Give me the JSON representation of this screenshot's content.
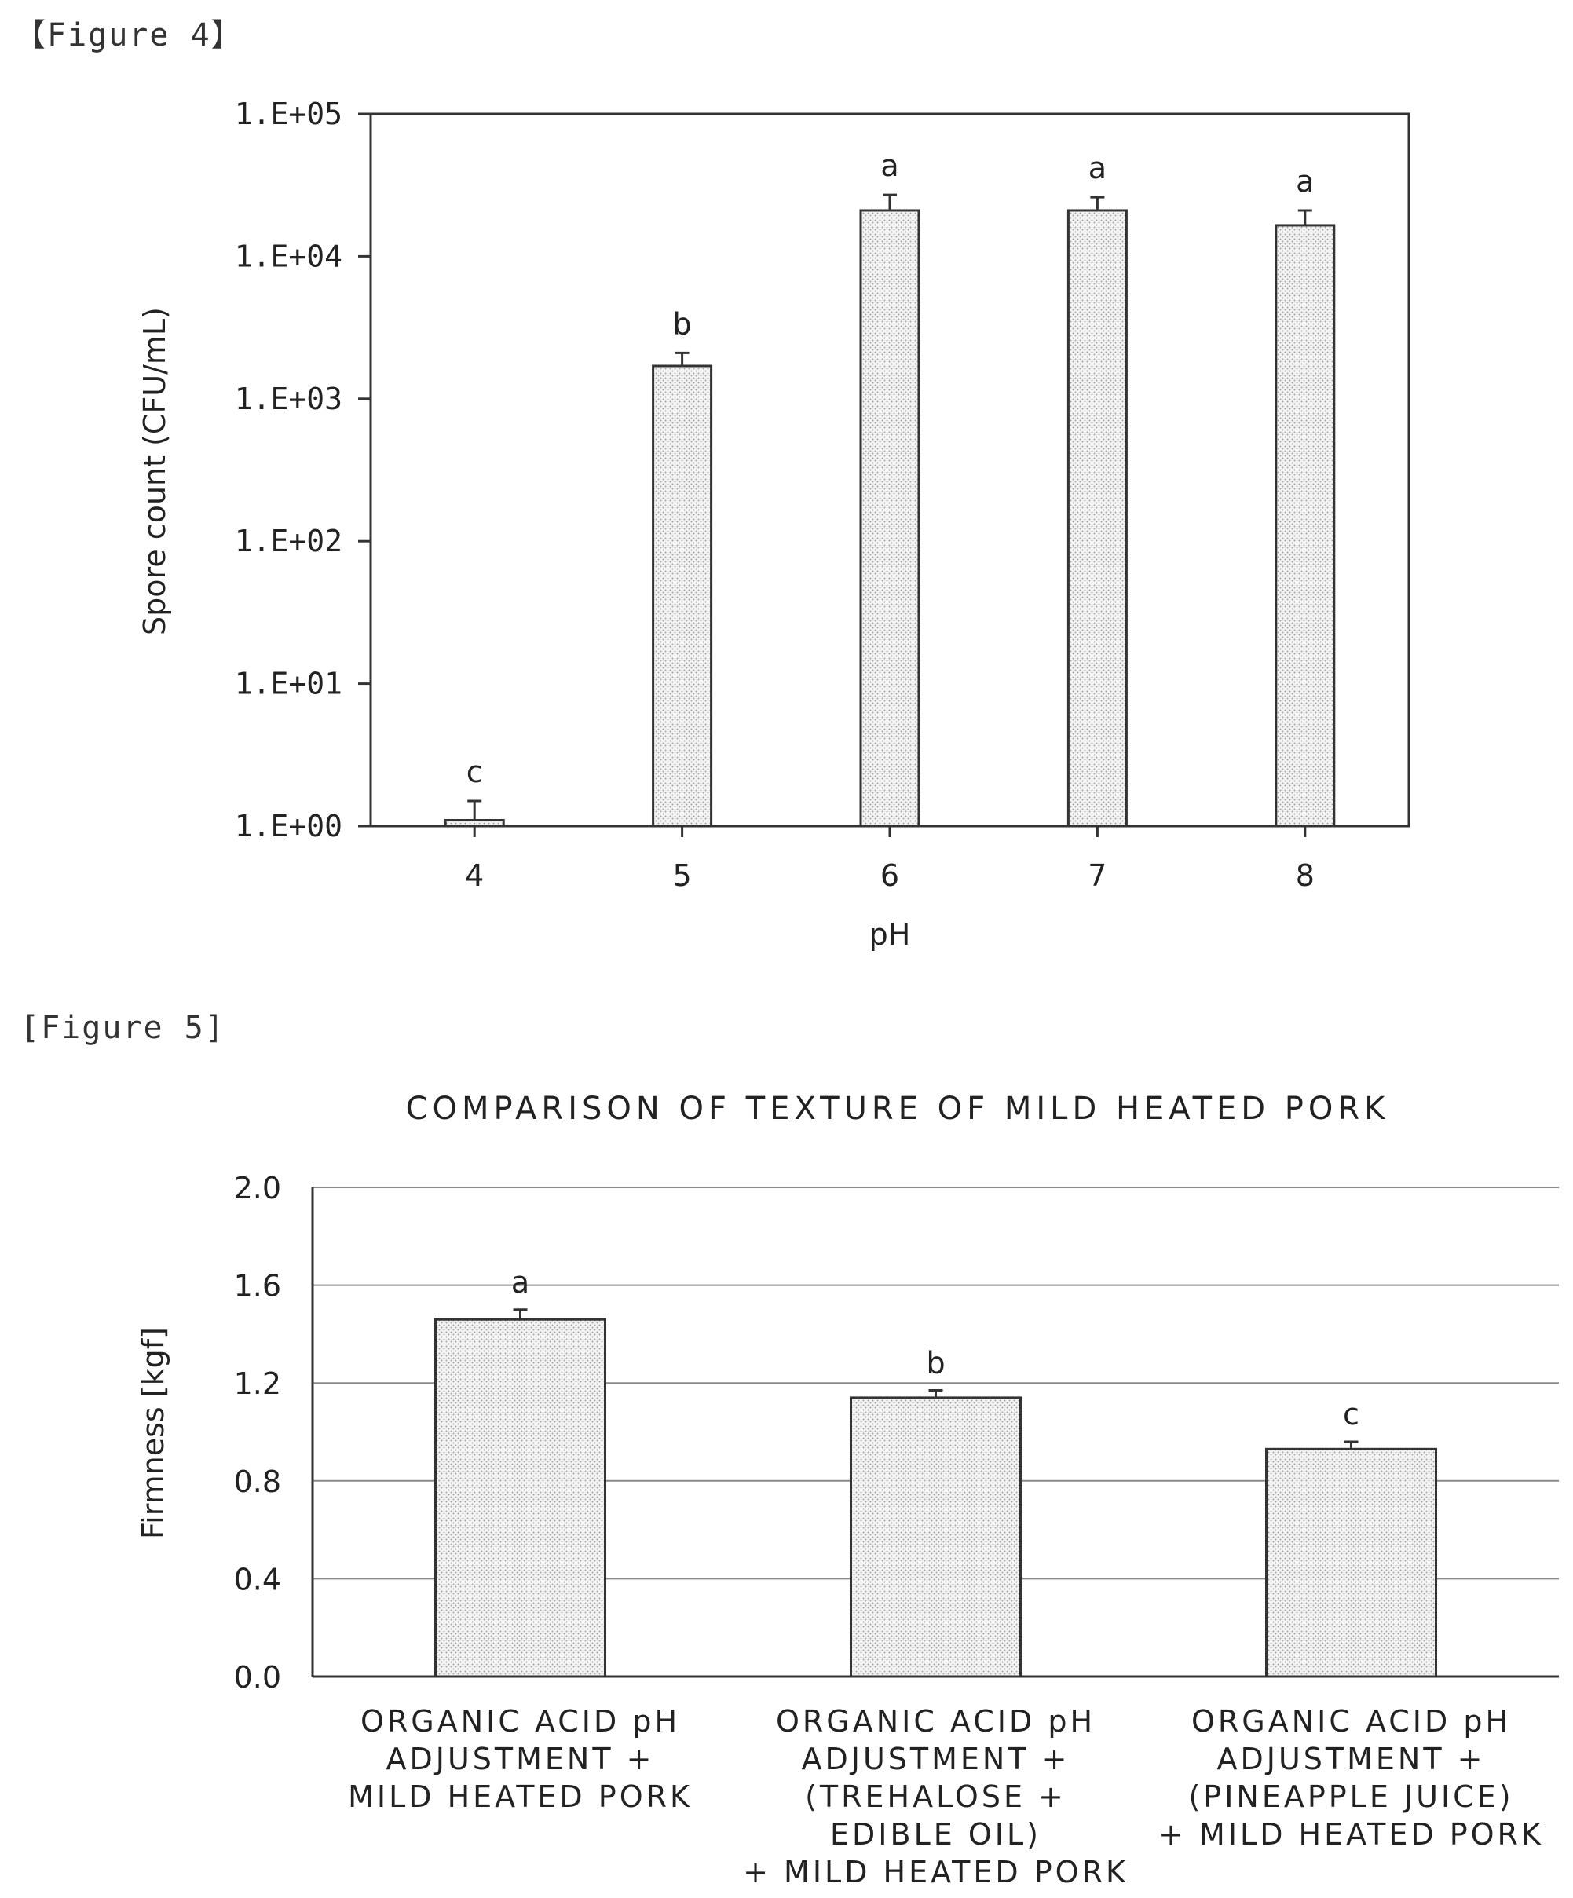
{
  "captions": {
    "figure4": "【Figure 4】",
    "figure5": "[Figure 5]"
  },
  "chart_data": [
    {
      "type": "bar",
      "title": "",
      "xlabel": "pH",
      "ylabel": "Spore count (CFU/mL)",
      "yscale": "log",
      "ylim": [
        1,
        100000
      ],
      "ytick_labels": [
        "1.E+00",
        "1.E+01",
        "1.E+02",
        "1.E+03",
        "1.E+04",
        "1.E+05"
      ],
      "categories": [
        "4",
        "5",
        "6",
        "7",
        "8"
      ],
      "values": [
        1.1,
        1700,
        21000,
        21000,
        16500
      ],
      "error_upper": [
        1.5,
        2100,
        27000,
        26000,
        21000
      ],
      "significance_letters": [
        "c",
        "b",
        "a",
        "a",
        "a"
      ],
      "grid": false,
      "bar_fill": "stippled light grey"
    },
    {
      "type": "bar",
      "title": "COMPARISON OF TEXTURE OF MILD HEATED PORK",
      "xlabel": "",
      "ylabel": "Firmness [kgf]",
      "ylim": [
        0,
        2.0
      ],
      "ytick_labels": [
        "0.0",
        "0.4",
        "0.8",
        "1.2",
        "1.6",
        "2.0"
      ],
      "categories": [
        [
          "ORGANIC ACID pH",
          "ADJUSTMENT +",
          "MILD HEATED PORK"
        ],
        [
          "ORGANIC ACID pH",
          "ADJUSTMENT +",
          "(TREHALOSE +",
          "EDIBLE OIL)",
          "+ MILD HEATED PORK"
        ],
        [
          "ORGANIC ACID pH",
          "ADJUSTMENT +",
          "(PINEAPPLE JUICE)",
          "+ MILD HEATED PORK"
        ]
      ],
      "values": [
        1.46,
        1.14,
        0.93
      ],
      "error_upper": [
        1.5,
        1.17,
        0.96
      ],
      "significance_letters": [
        "a",
        "b",
        "c"
      ],
      "grid": true,
      "bar_fill": "stippled light grey"
    }
  ]
}
